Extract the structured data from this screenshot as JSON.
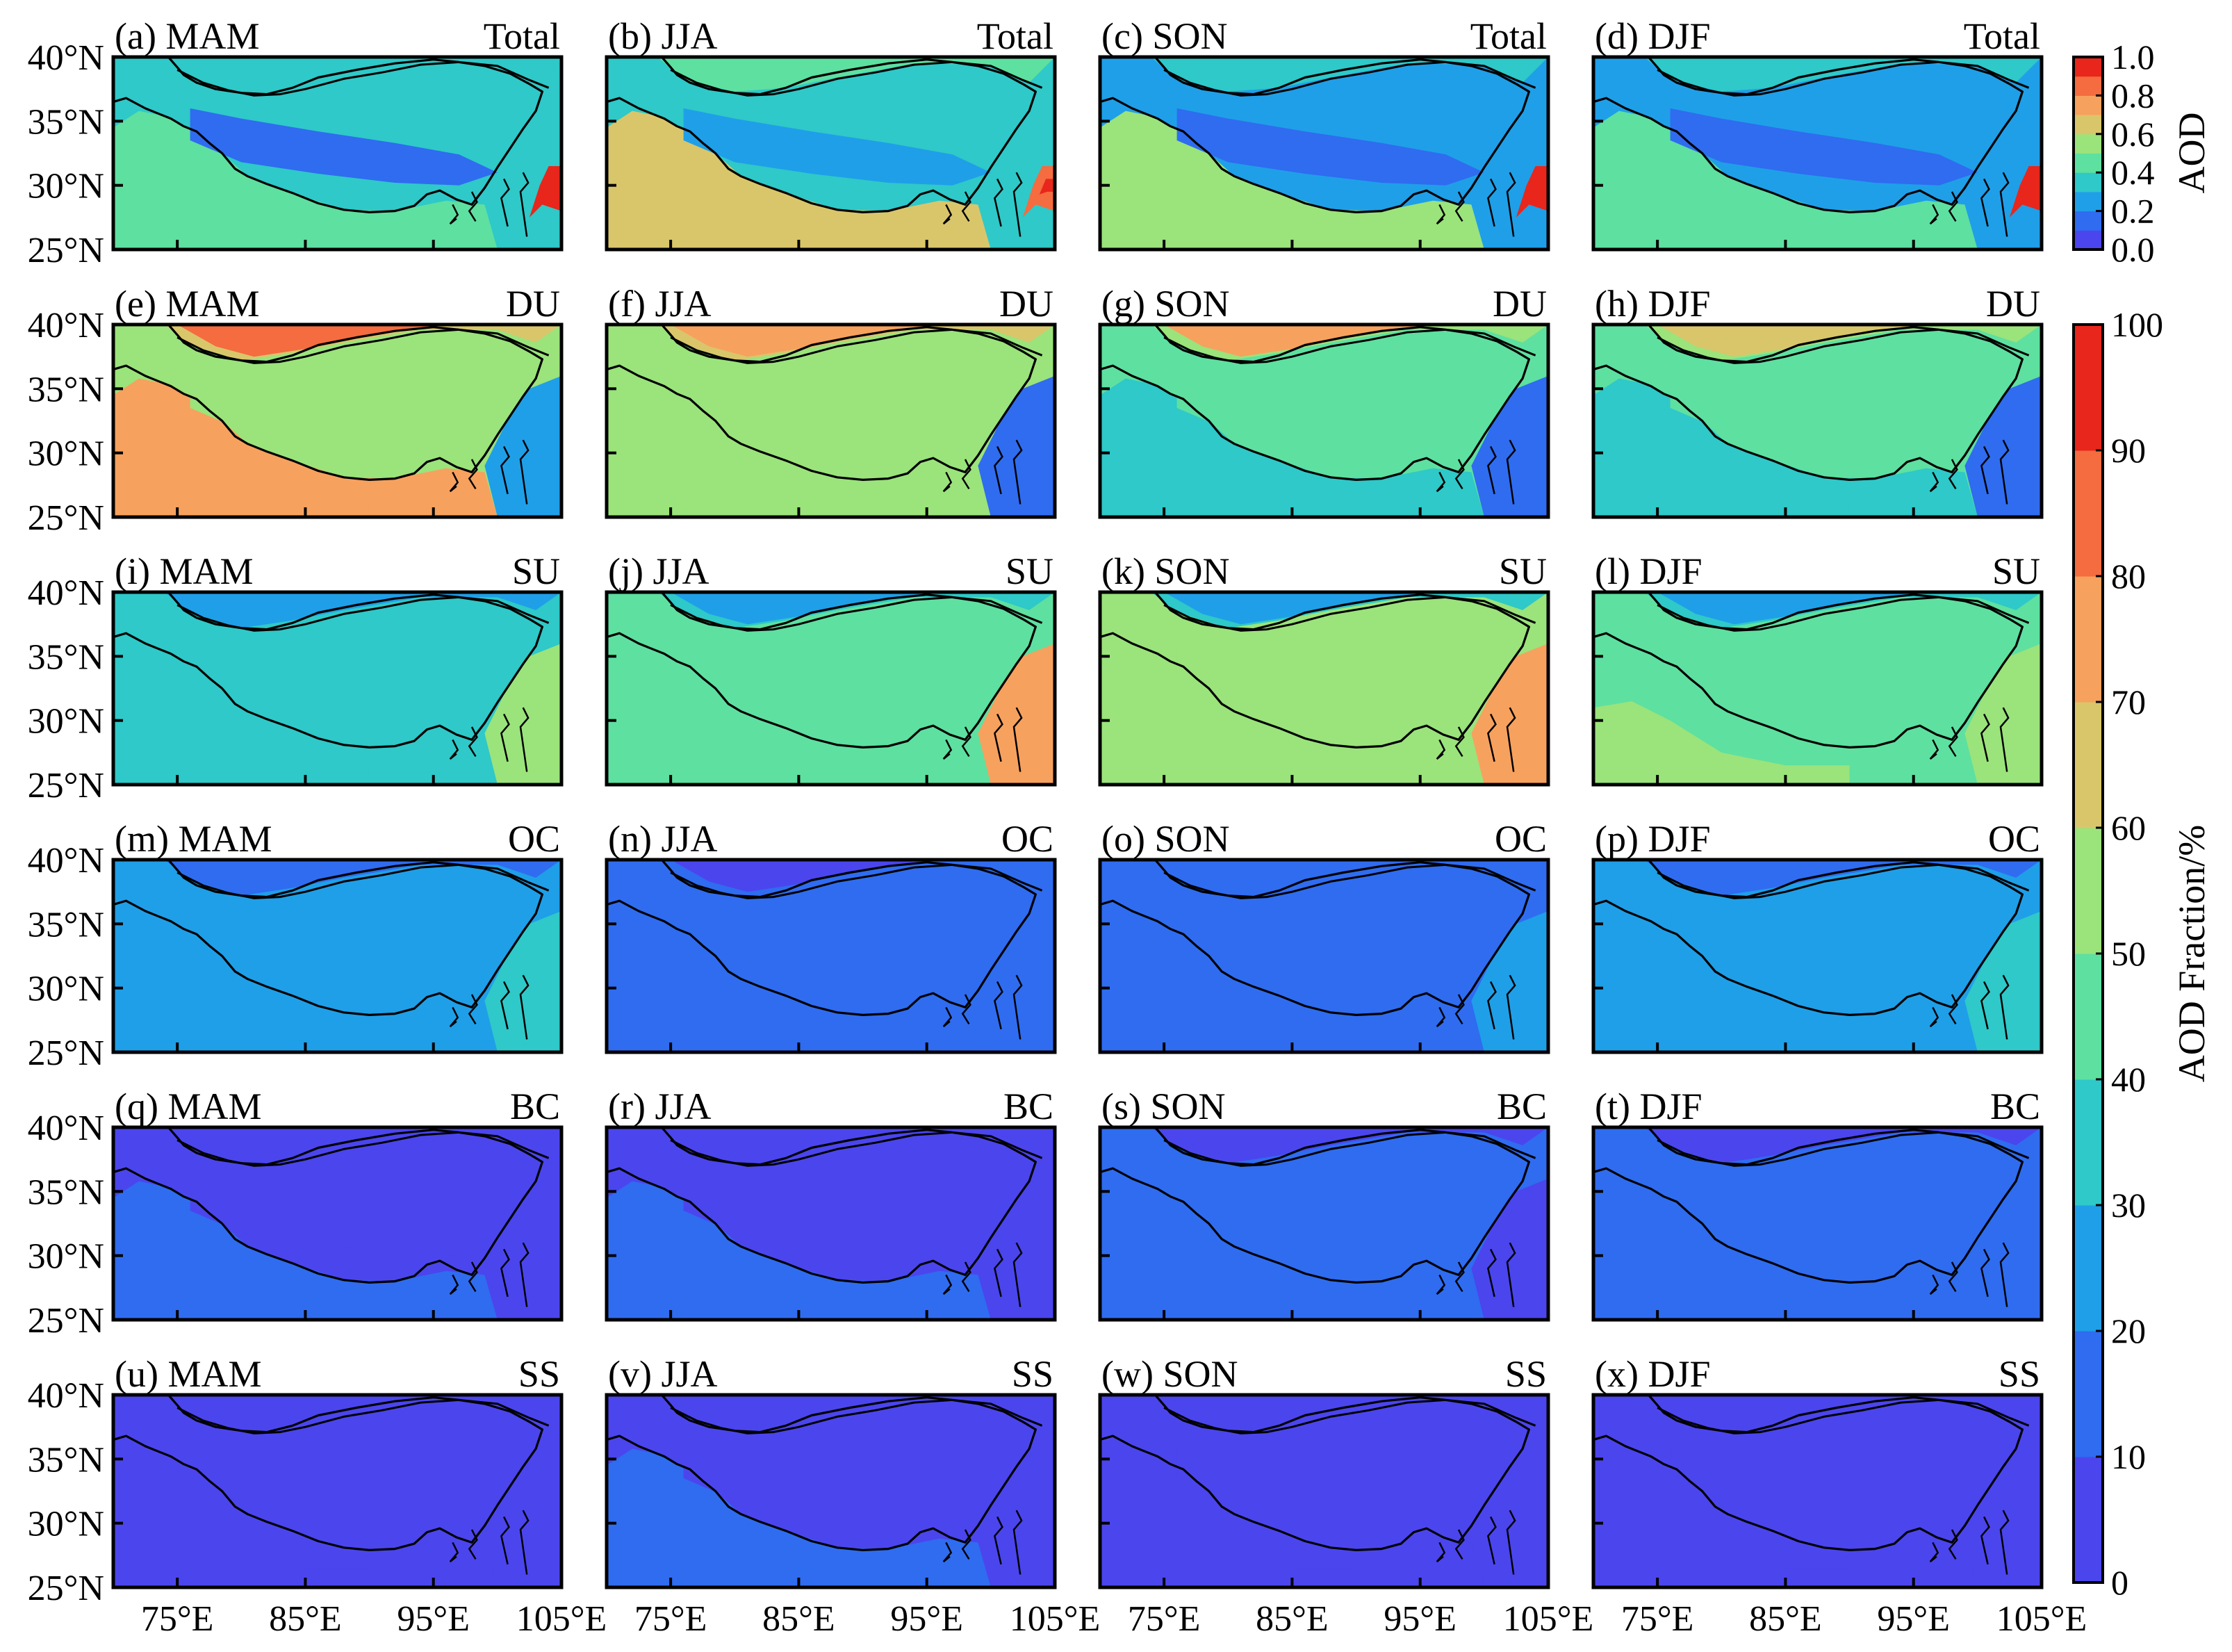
{
  "chart_data": {
    "type": "heatmap",
    "title": "",
    "seasons": [
      "MAM",
      "JJA",
      "SON",
      "DJF"
    ],
    "rows": [
      {
        "species": "Total",
        "labels": [
          "(a) MAM",
          "(b) JJA",
          "(c) SON",
          "(d) DJF"
        ],
        "mean_value": [
          0.3,
          0.35,
          0.28,
          0.25
        ],
        "north_high": [
          false,
          false,
          false,
          false
        ],
        "east_hotspot": [
          0.95,
          0.8,
          1.0,
          0.9
        ],
        "south_edge": [
          0.45,
          0.6,
          0.5,
          0.45
        ]
      },
      {
        "species": "DU",
        "labels": [
          "(e) MAM",
          "(f) JJA",
          "(g) SON",
          "(h) DJF"
        ],
        "mean_value": [
          55,
          52,
          40,
          40
        ],
        "north_high": [
          80,
          78,
          72,
          62
        ],
        "east_low": [
          25,
          18,
          10,
          15
        ],
        "south_edge": [
          70,
          55,
          30,
          35
        ]
      },
      {
        "species": "SU",
        "labels": [
          "(i) MAM",
          "(j) JJA",
          "(k) SON",
          "(l) DJF"
        ],
        "mean_value": [
          35,
          45,
          50,
          48
        ],
        "north_high": [
          20,
          22,
          22,
          28
        ],
        "east_low": [
          50,
          70,
          78,
          55
        ],
        "south_edge": [
          35,
          45,
          55,
          48
        ]
      },
      {
        "species": "OC",
        "labels": [
          "(m) MAM",
          "(n) JJA",
          "(o) SON",
          "(p) DJF"
        ],
        "mean_value": [
          20,
          13,
          17,
          22
        ],
        "north_high": [
          12,
          8,
          10,
          15
        ],
        "east_low": [
          35,
          15,
          20,
          30
        ],
        "south_edge": [
          22,
          10,
          18,
          25
        ]
      },
      {
        "species": "BC",
        "labels": [
          "(q) MAM",
          "(r) JJA",
          "(s) SON",
          "(t) DJF"
        ],
        "mean_value": [
          7,
          6,
          10,
          12
        ],
        "north_high": [
          5,
          5,
          7,
          7
        ],
        "east_low": [
          8,
          6,
          8,
          10
        ],
        "south_edge": [
          12,
          10,
          15,
          17
        ]
      },
      {
        "species": "SS",
        "labels": [
          "(u) MAM",
          "(v) JJA",
          "(w) SON",
          "(x) DJF"
        ],
        "mean_value": [
          4,
          6,
          4,
          4
        ],
        "north_high": [
          4,
          4,
          4,
          4
        ],
        "east_low": [
          4,
          4,
          4,
          4
        ],
        "south_edge": [
          6,
          15,
          4,
          4
        ]
      }
    ],
    "xaxis": {
      "tick_labels": [
        "75°E",
        "85°E",
        "95°E",
        "105°E"
      ],
      "range": [
        70,
        105
      ],
      "ticks": [
        75,
        85,
        95,
        105
      ]
    },
    "yaxis": {
      "tick_labels": [
        "40°N",
        "35°N",
        "30°N",
        "25°N"
      ],
      "range": [
        25,
        40
      ],
      "ticks": [
        40,
        35,
        30,
        25
      ]
    },
    "colorbar_aod": {
      "title": "AOD",
      "range": [
        0.0,
        1.0
      ],
      "tick_labels": [
        "1.0",
        "0.8",
        "0.6",
        "0.4",
        "0.2",
        "0.0"
      ],
      "ticks": [
        1.0,
        0.8,
        0.6,
        0.4,
        0.2,
        0.0
      ]
    },
    "colorbar_fraction": {
      "title": "AOD Fraction/%",
      "range": [
        0,
        100
      ],
      "tick_labels": [
        "100",
        "90",
        "80",
        "70",
        "60",
        "50",
        "40",
        "30",
        "20",
        "10",
        "0"
      ],
      "ticks": [
        100,
        90,
        80,
        70,
        60,
        50,
        40,
        30,
        20,
        10,
        0
      ]
    },
    "colormap": [
      "#4b45ee",
      "#2f6cf0",
      "#1f9fe8",
      "#2ec9c8",
      "#5ee0a0",
      "#9be37b",
      "#d9c66b",
      "#f7a15e",
      "#f46c3f",
      "#e8261b"
    ]
  }
}
